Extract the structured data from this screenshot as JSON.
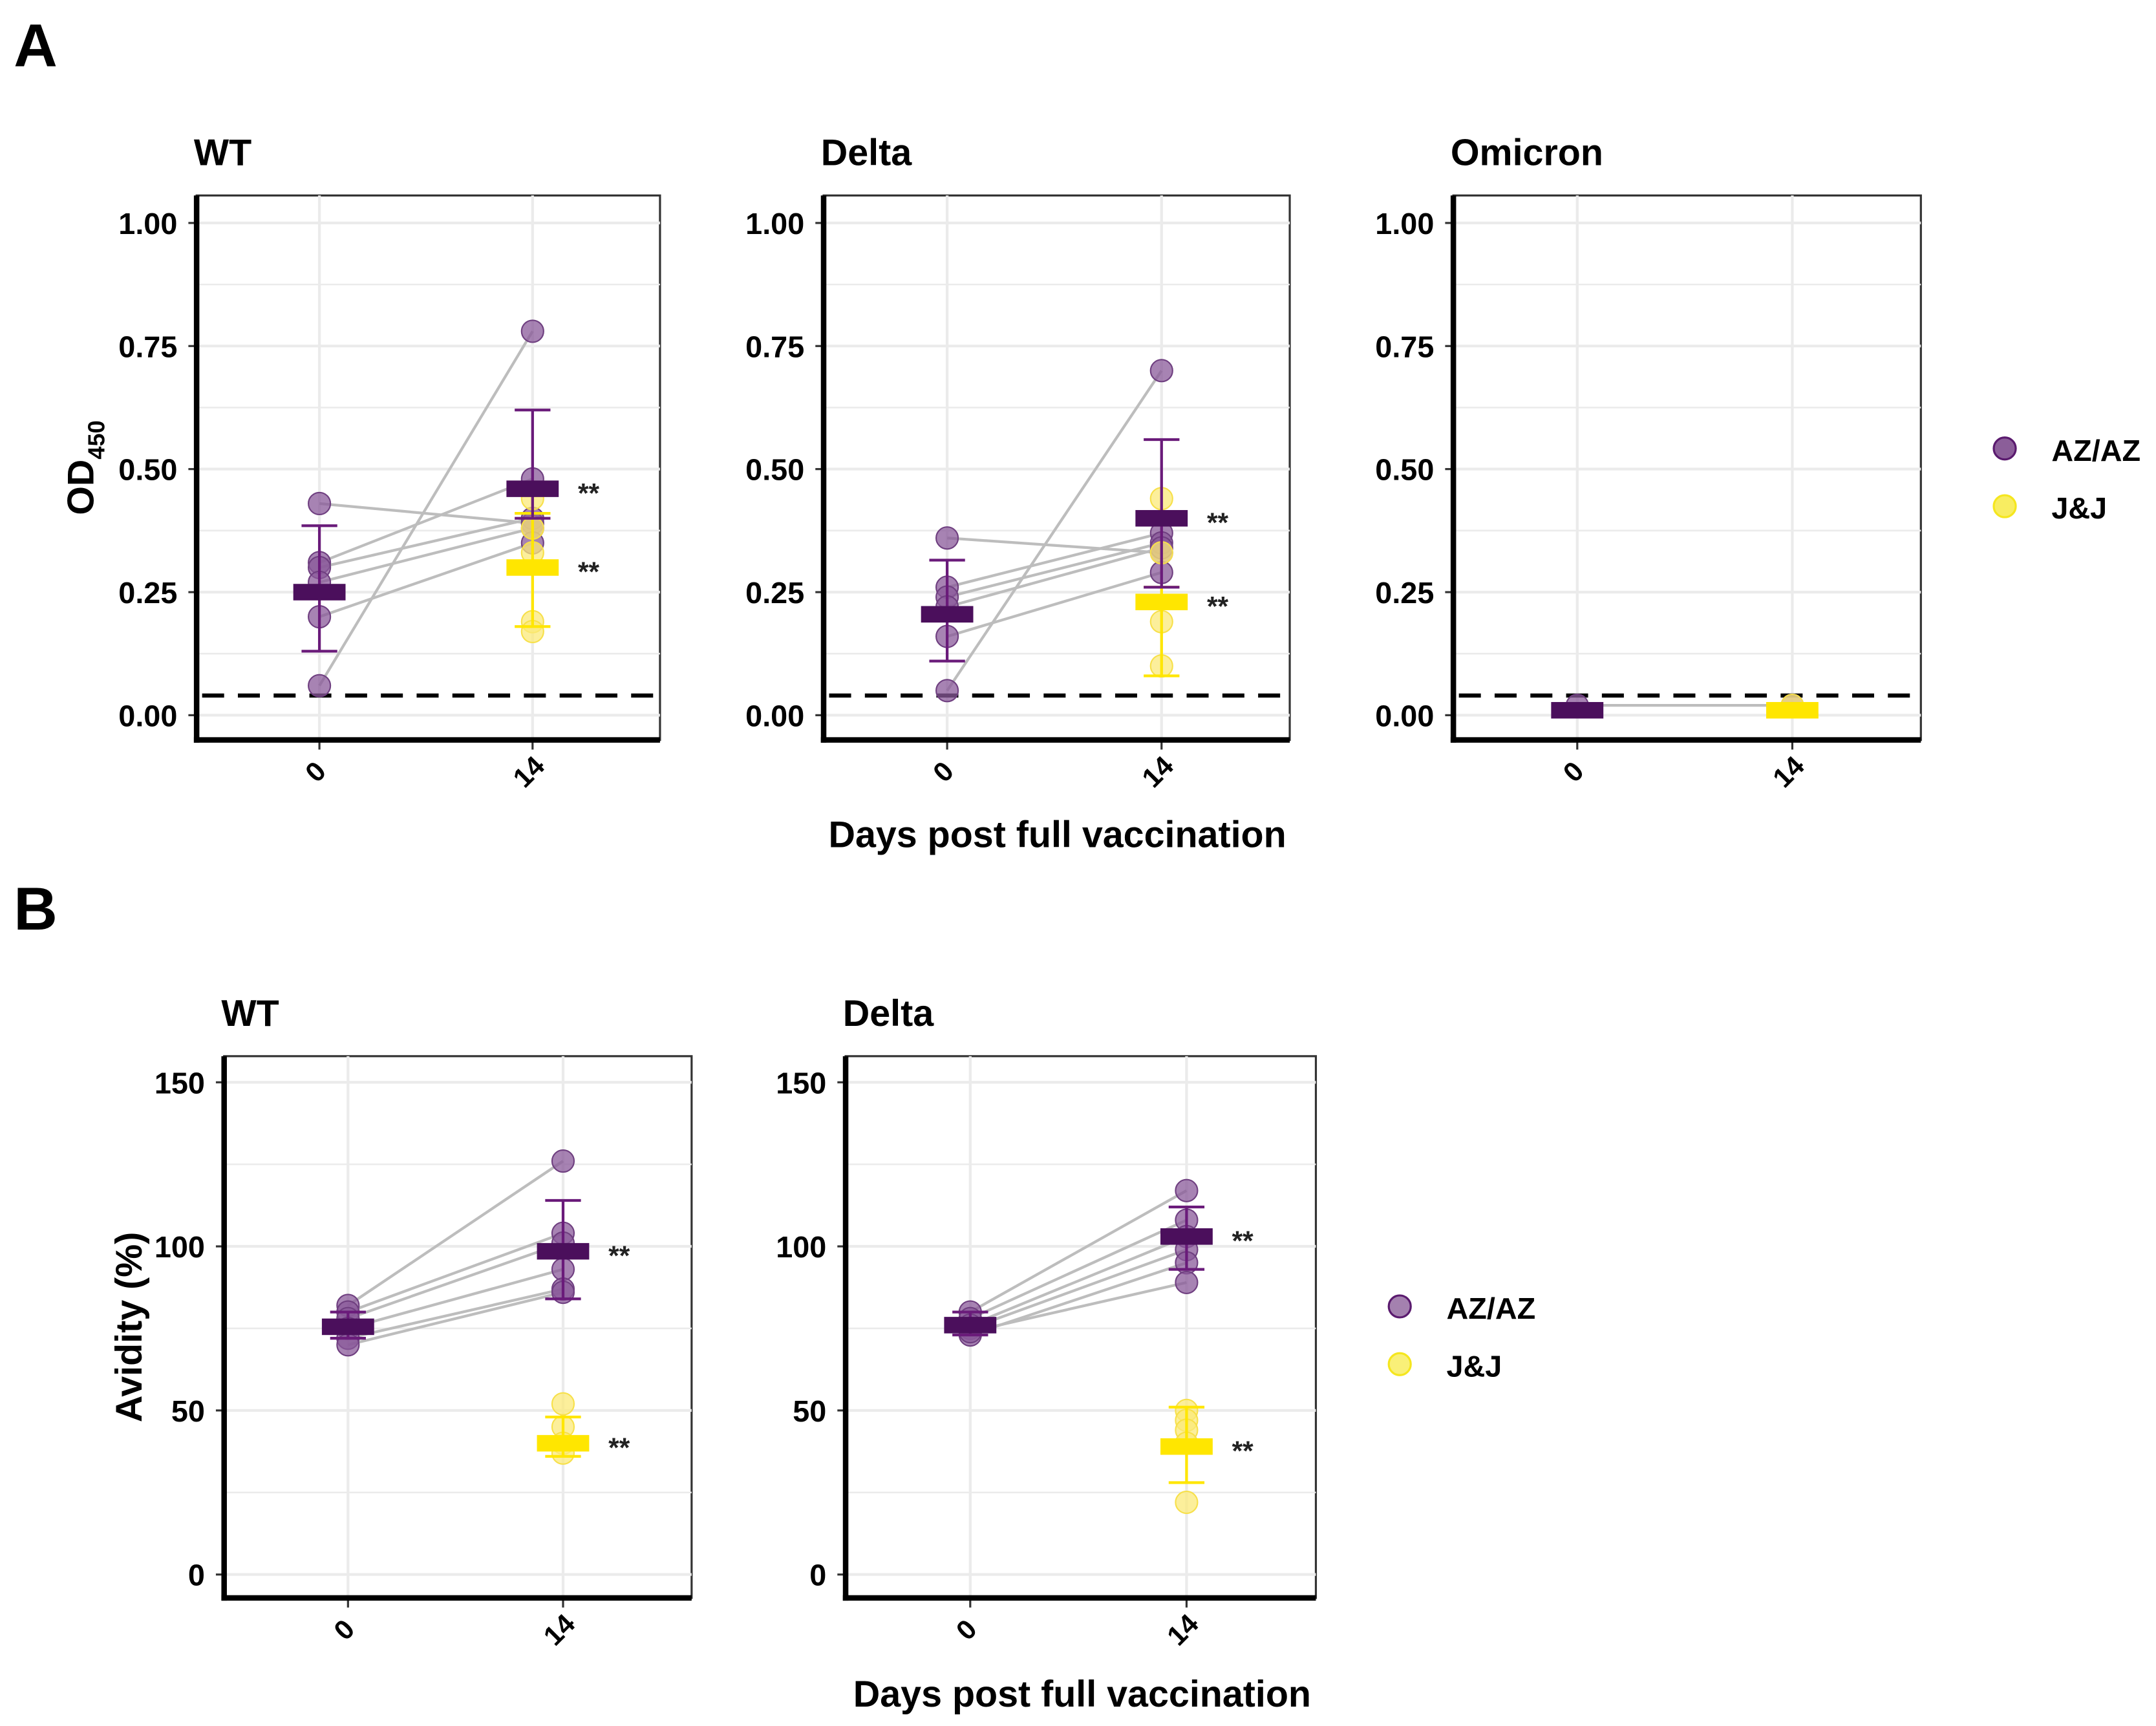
{
  "figure": {
    "panel_labels": [
      "A",
      "B"
    ],
    "legend": [
      {
        "label": "AZ/AZ",
        "color": "#5a1a6e"
      },
      {
        "label": "J&J",
        "color": "#f5e61e"
      }
    ],
    "ylabel_A": {
      "main": "OD",
      "sub": "450"
    },
    "ylabel_B": "Avidity (%)",
    "xlabel": "Days post full vaccination"
  },
  "colors": {
    "az": "#4b0f5c",
    "az_point": "#8a5a9a",
    "jj": "#ffe600",
    "jj_point": "#fbe97a",
    "pair_line": "#bdbdbd",
    "grid": "#ebebeb"
  },
  "chart_data": [
    {
      "type": "scatter",
      "figure": "A",
      "title": "WT",
      "ylim": [
        -0.05,
        1.05
      ],
      "yticks": [
        "0.00",
        "0.25",
        "0.50",
        "0.75",
        "1.00"
      ],
      "ytick_values": [
        0,
        0.25,
        0.5,
        0.75,
        1.0
      ],
      "categories": [
        "0",
        "14"
      ],
      "cutoff": 0.04,
      "az_pairs": [
        [
          0.43,
          0.39
        ],
        [
          0.31,
          0.48
        ],
        [
          0.3,
          0.4
        ],
        [
          0.27,
          0.38
        ],
        [
          0.2,
          0.35
        ],
        [
          0.06,
          0.78
        ]
      ],
      "az_mean": [
        0.25,
        0.46
      ],
      "az_err": [
        [
          0.13,
          0.385
        ],
        [
          0.4,
          0.62
        ]
      ],
      "jj_points": [
        0.44,
        0.38,
        0.33,
        0.19,
        0.17
      ],
      "jj_mean": 0.3,
      "jj_err": [
        0.18,
        0.41
      ],
      "sig": {
        "az": "**",
        "jj": "**"
      }
    },
    {
      "type": "scatter",
      "figure": "A",
      "title": "Delta",
      "ylim": [
        -0.05,
        1.05
      ],
      "yticks": [
        "0.00",
        "0.25",
        "0.50",
        "0.75",
        "1.00"
      ],
      "ytick_values": [
        0,
        0.25,
        0.5,
        0.75,
        1.0
      ],
      "categories": [
        "0",
        "14"
      ],
      "cutoff": 0.04,
      "az_pairs": [
        [
          0.36,
          0.33
        ],
        [
          0.26,
          0.37
        ],
        [
          0.24,
          0.35
        ],
        [
          0.22,
          0.34
        ],
        [
          0.16,
          0.29
        ],
        [
          0.05,
          0.7
        ]
      ],
      "az_mean": [
        0.205,
        0.4
      ],
      "az_err": [
        [
          0.11,
          0.315
        ],
        [
          0.26,
          0.56
        ]
      ],
      "jj_points": [
        0.44,
        0.33,
        0.19,
        0.1
      ],
      "jj_mean": 0.23,
      "jj_err": [
        0.08,
        0.26
      ],
      "sig": {
        "az": "**",
        "jj": "**"
      }
    },
    {
      "type": "scatter",
      "figure": "A",
      "title": "Omicron",
      "ylim": [
        -0.05,
        1.05
      ],
      "yticks": [
        "0.00",
        "0.25",
        "0.50",
        "0.75",
        "1.00"
      ],
      "ytick_values": [
        0,
        0.25,
        0.5,
        0.75,
        1.0
      ],
      "categories": [
        "0",
        "14"
      ],
      "cutoff": 0.04,
      "az_pairs": [
        [
          0.02,
          0.02
        ]
      ],
      "az_mean": [
        0.01,
        null
      ],
      "az_err": [
        [
          0.0,
          0.02
        ],
        null
      ],
      "jj_points": [
        0.02
      ],
      "jj_mean": 0.01,
      "jj_err": [
        0.0,
        0.02
      ],
      "sig": {
        "az": "",
        "jj": ""
      }
    },
    {
      "type": "scatter",
      "figure": "B",
      "title": "WT",
      "ylim": [
        -7,
        157
      ],
      "yticks": [
        "0",
        "50",
        "100",
        "150"
      ],
      "ytick_values": [
        0,
        50,
        100,
        150
      ],
      "categories": [
        "0",
        "14"
      ],
      "cutoff": null,
      "az_pairs": [
        [
          82,
          126
        ],
        [
          80,
          104
        ],
        [
          78,
          101
        ],
        [
          75,
          93
        ],
        [
          72,
          87
        ],
        [
          70,
          86
        ]
      ],
      "az_mean": [
        75.5,
        98.5
      ],
      "az_err": [
        [
          72,
          80
        ],
        [
          84,
          114
        ]
      ],
      "jj_points": [
        52,
        45,
        40,
        37
      ],
      "jj_mean": 40,
      "jj_err": [
        36,
        48
      ],
      "sig": {
        "az": "**",
        "jj": "**"
      }
    },
    {
      "type": "scatter",
      "figure": "B",
      "title": "Delta",
      "ylim": [
        -7,
        157
      ],
      "yticks": [
        "0",
        "50",
        "100",
        "150"
      ],
      "ytick_values": [
        0,
        50,
        100,
        150
      ],
      "categories": [
        "0",
        "14"
      ],
      "cutoff": null,
      "az_pairs": [
        [
          80,
          117
        ],
        [
          78,
          108
        ],
        [
          76,
          103
        ],
        [
          75,
          99
        ],
        [
          73,
          95
        ],
        [
          74,
          89
        ]
      ],
      "az_mean": [
        76,
        103
      ],
      "az_err": [
        [
          73,
          80
        ],
        [
          93,
          112
        ]
      ],
      "jj_points": [
        50,
        47,
        44,
        40,
        22
      ],
      "jj_mean": 39,
      "jj_err": [
        28,
        51
      ],
      "sig": {
        "az": "**",
        "jj": "**"
      }
    }
  ]
}
